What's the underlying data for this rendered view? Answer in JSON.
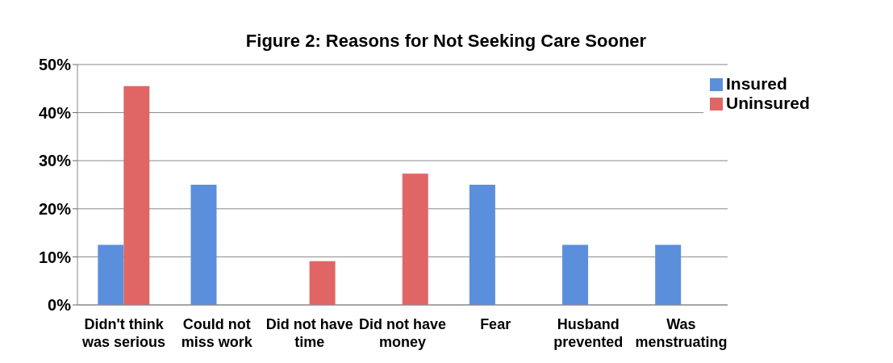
{
  "chart_data": {
    "type": "bar",
    "title": "Figure 2: Reasons for Not Seeking Care Sooner",
    "categories": [
      "Didn't think was serious",
      "Could not miss work",
      "Did not have time",
      "Did not have money",
      "Fear",
      "Husband prevented",
      "Was menstruating"
    ],
    "series": [
      {
        "name": "Insured",
        "color": "#5b8fdc",
        "values": [
          12.5,
          25,
          0,
          0,
          25,
          12.5,
          12.5
        ]
      },
      {
        "name": "Uninsured",
        "color": "#e06666",
        "values": [
          45.5,
          0,
          9.1,
          27.3,
          0,
          0,
          0
        ]
      }
    ],
    "ylim": [
      0,
      50
    ],
    "yticks": [
      {
        "value": 0,
        "label": "0%"
      },
      {
        "value": 10,
        "label": "10%"
      },
      {
        "value": 20,
        "label": "20%"
      },
      {
        "value": 30,
        "label": "30%"
      },
      {
        "value": 40,
        "label": "40%"
      },
      {
        "value": 50,
        "label": "50%"
      }
    ],
    "grid": "y",
    "legend": "top right"
  }
}
